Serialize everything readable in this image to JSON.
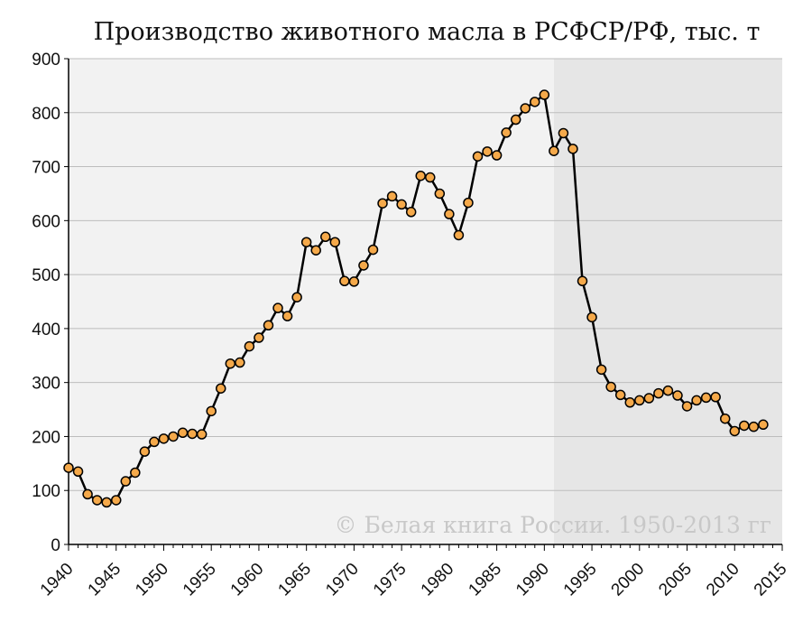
{
  "chart_data": {
    "type": "line",
    "title": "Производство животного масла в РСФСР/РФ, тыс. т",
    "xlabel": "",
    "ylabel": "",
    "xlim": [
      1940,
      2015
    ],
    "ylim": [
      0,
      900
    ],
    "x_ticks": [
      1940,
      1945,
      1950,
      1955,
      1960,
      1965,
      1970,
      1975,
      1980,
      1985,
      1990,
      1995,
      2000,
      2005,
      2010,
      2015
    ],
    "y_ticks": [
      0,
      100,
      200,
      300,
      400,
      500,
      600,
      700,
      800,
      900
    ],
    "grid": "horizontal",
    "legend": "none",
    "shaded_period": [
      1991,
      2015
    ],
    "watermark": "© Белая книга России. 1950-2013 гг",
    "colors": {
      "line": "#000000",
      "marker_fill": "#f5a94a",
      "marker_stroke": "#000000",
      "background_early": "#f2f2f2",
      "background_late": "#e6e6e6",
      "grid": "#bdbdbd"
    },
    "series": [
      {
        "x": [
          1940,
          1941,
          1942,
          1943,
          1944,
          1945,
          1946,
          1947,
          1948,
          1949,
          1950,
          1951,
          1952,
          1953,
          1954,
          1955,
          1956,
          1957,
          1958,
          1959,
          1960,
          1961,
          1962,
          1963,
          1964,
          1965,
          1966,
          1967,
          1968,
          1969,
          1970,
          1971,
          1972,
          1973,
          1974,
          1975,
          1976,
          1977,
          1978,
          1979,
          1980,
          1981,
          1982,
          1983,
          1984,
          1985,
          1986,
          1987,
          1988,
          1989,
          1990,
          1991,
          1992,
          1993,
          1994,
          1995,
          1996,
          1997,
          1998,
          1999,
          2000,
          2001,
          2002,
          2003,
          2004,
          2005,
          2006,
          2007,
          2008,
          2009,
          2010,
          2011,
          2012,
          2013
        ],
        "y": [
          142,
          135,
          93,
          82,
          78,
          82,
          117,
          133,
          172,
          190,
          196,
          200,
          207,
          205,
          204,
          247,
          289,
          335,
          337,
          367,
          383,
          406,
          438,
          423,
          458,
          560,
          545,
          570,
          560,
          488,
          487,
          517,
          546,
          632,
          645,
          630,
          616,
          683,
          680,
          650,
          612,
          573,
          633,
          719,
          728,
          721,
          763,
          787,
          808,
          820,
          833,
          729,
          762,
          733,
          488,
          421,
          324,
          292,
          277,
          263,
          267,
          271,
          280,
          285,
          276,
          256,
          267,
          272,
          273,
          233,
          210,
          220,
          218,
          222
        ]
      }
    ]
  }
}
